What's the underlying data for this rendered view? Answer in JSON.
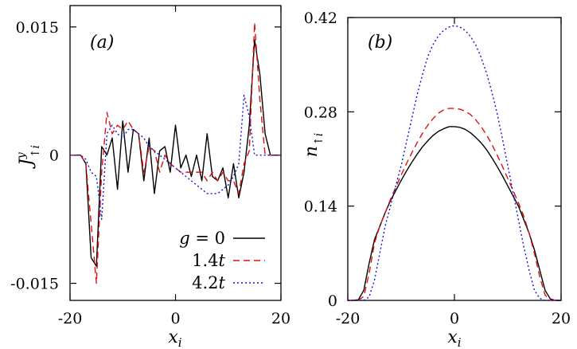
{
  "chart_data": [
    {
      "type": "line",
      "panel_label": "(a)",
      "xlabel": "x_i",
      "ylabel": "J^y_{↑i}",
      "xlim": [
        -20,
        20
      ],
      "ylim": [
        -0.017,
        0.0175
      ],
      "xticks": [
        -20,
        0,
        20
      ],
      "xtick_labels": [
        "-20",
        "0",
        "20"
      ],
      "yticks": [
        -0.015,
        0,
        0.015
      ],
      "ytick_labels": [
        "-0.015",
        "0",
        "0.015"
      ],
      "grid": false,
      "legend": "bottom-right",
      "series": [
        {
          "name": "g = 0",
          "color": "#000000",
          "dash": "solid",
          "x": [
            -20,
            -19,
            -18,
            -17,
            -16,
            -15,
            -14,
            -13,
            -12,
            -11,
            -10,
            -9,
            -8,
            -7,
            -6,
            -5,
            -4,
            -3,
            -2,
            -1,
            0,
            1,
            2,
            3,
            4,
            5,
            6,
            7,
            8,
            9,
            10,
            11,
            12,
            13,
            14,
            15,
            16,
            17,
            18,
            19,
            20
          ],
          "y": [
            0,
            0,
            0,
            -0.001,
            -0.012,
            -0.013,
            0.001,
            0,
            0.002,
            -0.004,
            0.004,
            -0.002,
            0.003,
            0.0025,
            -0.003,
            0.002,
            -0.0045,
            0.0005,
            0.001,
            -0.002,
            0.0035,
            -0.0015,
            0,
            -0.0025,
            0,
            -0.003,
            0.0025,
            -0.0025,
            -0.003,
            -0.0015,
            -0.005,
            -0.001,
            -0.005,
            -0.002,
            0.0035,
            0.0135,
            0.0095,
            0.0025,
            0,
            0,
            0
          ]
        },
        {
          "name": "1.4t",
          "color": "#e01010",
          "dash": "8,5",
          "x": [
            -20,
            -19,
            -18,
            -17,
            -16,
            -15,
            -14,
            -13,
            -12,
            -11,
            -10,
            -9,
            -8,
            -7,
            -6,
            -5,
            -4,
            -3,
            -2,
            -1,
            0,
            1,
            2,
            3,
            4,
            5,
            6,
            7,
            8,
            9,
            10,
            11,
            12,
            13,
            14,
            15,
            16,
            17,
            18,
            19,
            20
          ],
          "y": [
            0,
            0,
            0,
            -0.001,
            -0.008,
            -0.015,
            -0.002,
            0.005,
            0.0025,
            0.0035,
            0.003,
            0.004,
            0.003,
            0.0025,
            -0.002,
            0.001,
            0.0005,
            -0.002,
            0,
            -0.001,
            -0.0015,
            -0.002,
            -0.002,
            -0.002,
            -0.002,
            -0.002,
            -0.003,
            -0.002,
            -0.003,
            -0.002,
            -0.003,
            -0.003,
            -0.0045,
            -0.001,
            0.0005,
            0.0155,
            0.0065,
            0,
            0,
            0,
            0
          ]
        },
        {
          "name": "4.2t",
          "color": "#1010dd",
          "dash": "2,3",
          "x": [
            -20,
            -19,
            -18,
            -17,
            -16,
            -15,
            -14,
            -13,
            -12,
            -11,
            -10,
            -9,
            -8,
            -7,
            -6,
            -5,
            -4,
            -3,
            -2,
            -1,
            0,
            1,
            2,
            3,
            4,
            5,
            6,
            7,
            8,
            9,
            10,
            11,
            12,
            13,
            14,
            15,
            16,
            17,
            18,
            19,
            20
          ],
          "y": [
            0,
            0,
            0,
            -0.0005,
            -0.002,
            -0.0025,
            -0.0075,
            0.0025,
            0.0035,
            0.0025,
            0.002,
            0.003,
            0.003,
            0.0025,
            0.002,
            0.001,
            0.0005,
            0,
            -0.0005,
            -0.001,
            -0.0015,
            -0.002,
            -0.0025,
            -0.003,
            -0.0035,
            -0.004,
            -0.0045,
            -0.0045,
            -0.0045,
            -0.004,
            -0.0035,
            -0.0025,
            -0.001,
            0.007,
            0.0045,
            0,
            0,
            0,
            0,
            0,
            0
          ]
        }
      ]
    },
    {
      "type": "line",
      "panel_label": "(b)",
      "xlabel": "x_i",
      "ylabel": "n_{↑i}",
      "xlim": [
        -20,
        20
      ],
      "ylim": [
        0,
        0.42
      ],
      "xticks": [
        -20,
        0,
        20
      ],
      "xtick_labels": [
        "-20",
        "0",
        "20"
      ],
      "yticks": [
        0,
        0.14,
        0.28,
        0.42
      ],
      "ytick_labels": [
        "0",
        "0.14",
        "0.28",
        "0.42"
      ],
      "grid": false,
      "series": [
        {
          "name": "g = 0",
          "color": "#000000",
          "dash": "solid",
          "x": [
            -20,
            -19,
            -18,
            -17,
            -16,
            -15,
            -14,
            -13,
            -12,
            -11,
            -10,
            -9,
            -8,
            -7,
            -6,
            -5,
            -4,
            -3,
            -2,
            -1,
            0,
            1,
            2,
            3,
            4,
            5,
            6,
            7,
            8,
            9,
            10,
            11,
            12,
            13,
            14,
            15,
            16,
            17,
            18,
            19,
            20
          ],
          "y": [
            0,
            0,
            0.001,
            0.015,
            0.055,
            0.09,
            0.11,
            0.13,
            0.148,
            0.163,
            0.178,
            0.192,
            0.205,
            0.217,
            0.228,
            0.237,
            0.245,
            0.251,
            0.255,
            0.258,
            0.258,
            0.257,
            0.254,
            0.249,
            0.242,
            0.234,
            0.224,
            0.212,
            0.199,
            0.185,
            0.17,
            0.155,
            0.14,
            0.12,
            0.1,
            0.075,
            0.045,
            0.015,
            0.002,
            0,
            0
          ]
        },
        {
          "name": "1.4t",
          "color": "#e01010",
          "dash": "8,5",
          "x": [
            -20,
            -19,
            -18,
            -17,
            -16,
            -15,
            -14,
            -13,
            -12,
            -11,
            -10,
            -9,
            -8,
            -7,
            -6,
            -5,
            -4,
            -3,
            -2,
            -1,
            0,
            1,
            2,
            3,
            4,
            5,
            6,
            7,
            8,
            9,
            10,
            11,
            12,
            13,
            14,
            15,
            16,
            17,
            18,
            19,
            20
          ],
          "y": [
            0,
            0,
            0,
            0.006,
            0.04,
            0.085,
            0.11,
            0.13,
            0.15,
            0.168,
            0.186,
            0.203,
            0.219,
            0.234,
            0.248,
            0.26,
            0.27,
            0.278,
            0.283,
            0.285,
            0.285,
            0.284,
            0.281,
            0.276,
            0.268,
            0.258,
            0.246,
            0.232,
            0.216,
            0.199,
            0.181,
            0.163,
            0.145,
            0.125,
            0.1,
            0.07,
            0.035,
            0.008,
            0,
            0,
            0
          ]
        },
        {
          "name": "4.2t",
          "color": "#1010dd",
          "dash": "2,3",
          "x": [
            -20,
            -19,
            -18,
            -17,
            -16,
            -15,
            -14,
            -13,
            -12,
            -11,
            -10,
            -9,
            -8,
            -7,
            -6,
            -5,
            -4,
            -3,
            -2,
            -1,
            0,
            1,
            2,
            3,
            4,
            5,
            6,
            7,
            8,
            9,
            10,
            11,
            12,
            13,
            14,
            15,
            16,
            17,
            18,
            19,
            20
          ],
          "y": [
            0,
            0,
            0,
            0,
            0.005,
            0.03,
            0.07,
            0.11,
            0.14,
            0.17,
            0.2,
            0.235,
            0.27,
            0.305,
            0.335,
            0.362,
            0.38,
            0.393,
            0.401,
            0.406,
            0.408,
            0.406,
            0.401,
            0.392,
            0.379,
            0.361,
            0.338,
            0.31,
            0.278,
            0.24,
            0.2,
            0.16,
            0.12,
            0.08,
            0.045,
            0.015,
            0.003,
            0,
            0,
            0,
            0
          ]
        }
      ]
    }
  ]
}
